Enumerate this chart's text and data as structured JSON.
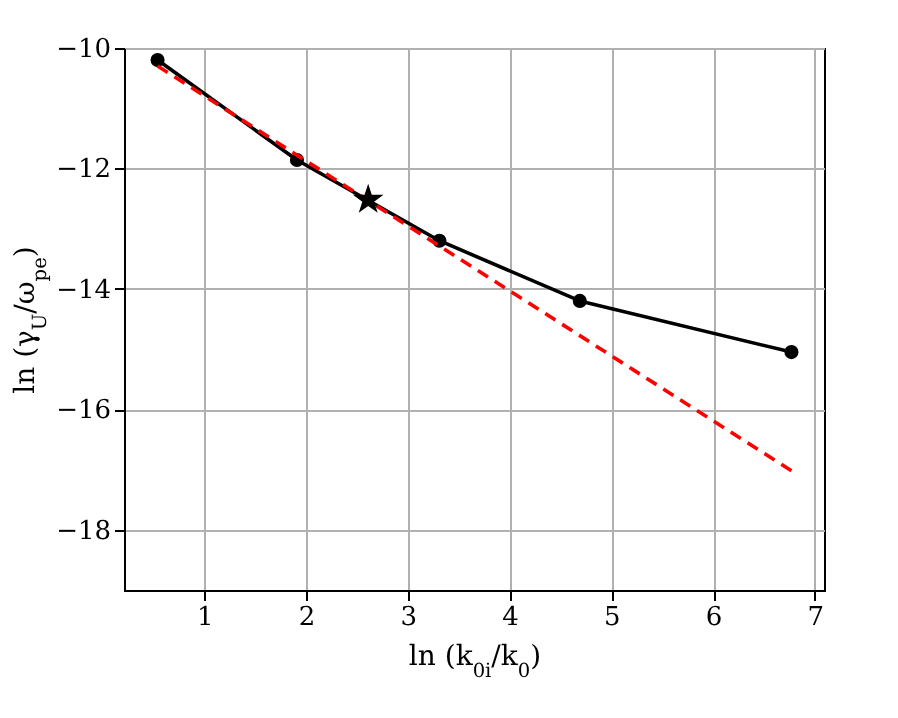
{
  "chart_data": {
    "type": "line",
    "xlabel": "ln (k$_{0i}$/k$_{0}$)",
    "ylabel": "ln (γ$_{U}$/ω$_{pe}$)",
    "xlim": [
      0.21,
      7.09
    ],
    "ylim": [
      -19,
      -10
    ],
    "xticks": [
      1,
      2,
      3,
      4,
      5,
      6,
      7
    ],
    "yticks": [
      -18,
      -16,
      -14,
      -12,
      -10
    ],
    "grid": true,
    "series": [
      {
        "color": "#000000",
        "marker": "circle",
        "line_style": "solid",
        "x": [
          0.54,
          1.91,
          3.31,
          4.69,
          6.77
        ],
        "values": [
          -10.2,
          -11.86,
          -13.2,
          -14.2,
          -15.05
        ]
      },
      {
        "color": "#ff0000",
        "marker": "none",
        "line_style": "dashed",
        "x": [
          0.54,
          6.77
        ],
        "values": [
          -10.3,
          -17.02
        ]
      },
      {
        "type": "scatter",
        "color": "#000000",
        "marker": "star",
        "x": [
          2.61
        ],
        "values": [
          -12.52
        ]
      }
    ]
  }
}
